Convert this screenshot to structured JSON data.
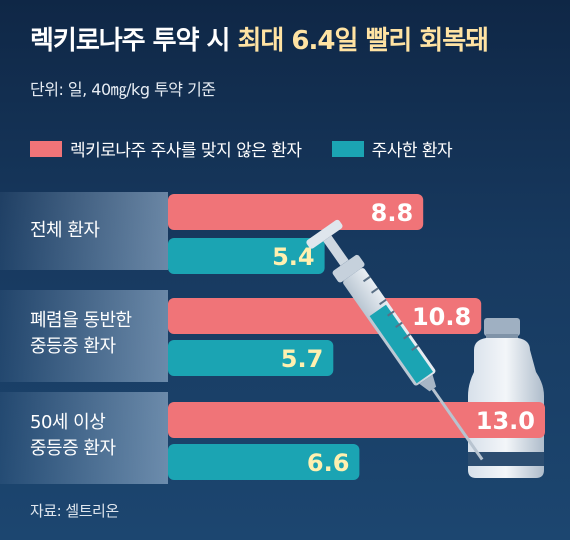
{
  "title": {
    "prefix": "렉키로나주 투약 시 ",
    "highlight": "최대 6.4일 빨리 회복돼"
  },
  "subtitle": "단위: 일, 40㎎/kg 투약 기준",
  "source": "자료: 셀트리온",
  "colors": {
    "untreated": "#f07478",
    "treated": "#1ba4b3",
    "label_untreated": "#ffffff",
    "label_treated": "#fff0b0"
  },
  "chart_data": {
    "type": "bar",
    "orientation": "horizontal",
    "categories": [
      [
        "전체 환자"
      ],
      [
        "폐렴을 동반한",
        "중등증 환자"
      ],
      [
        "50세 이상",
        "중등증 환자"
      ]
    ],
    "series": [
      {
        "name": "렉키로나주 주사를 맞지 않은 환자",
        "values": [
          8.8,
          10.8,
          13.0
        ],
        "labels": [
          "8.8",
          "10.8",
          "13.0"
        ]
      },
      {
        "name": "주사한 환자",
        "values": [
          5.4,
          5.7,
          6.6
        ],
        "labels": [
          "5.4",
          "5.7",
          "6.6"
        ]
      }
    ],
    "xlabel": "",
    "ylabel": "",
    "xlim": [
      0,
      13.0
    ],
    "legend": "top-left",
    "grid": false
  }
}
